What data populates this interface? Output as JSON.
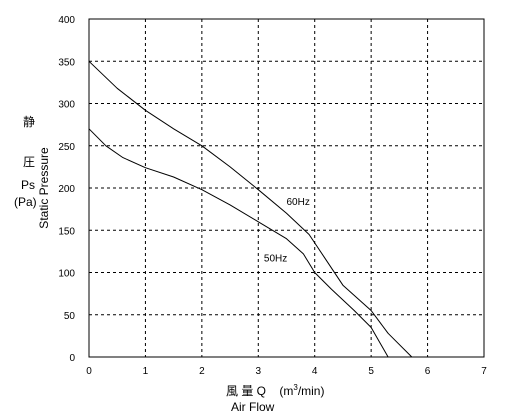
{
  "chart_data": {
    "type": "line",
    "x_ticks": [
      "0",
      "1",
      "2",
      "3",
      "4",
      "5",
      "6",
      "7"
    ],
    "y_ticks": [
      "0",
      "50",
      "100",
      "150",
      "200",
      "250",
      "300",
      "350",
      "400"
    ],
    "xlim": [
      0,
      7
    ],
    "ylim": [
      0,
      400
    ],
    "grid": true,
    "xlabel_jp": "風 量 Q",
    "xlabel_unit_pre": "(m",
    "xlabel_unit_sup": "3",
    "xlabel_unit_post": "/min)",
    "xlabel_en": "Air Flow",
    "ylabel_jp_1": "静",
    "ylabel_jp_2": "圧",
    "ylabel_sym": "Ps",
    "ylabel_unit": "(Pa)",
    "ylabel_en": "Static Pressure",
    "series": [
      {
        "name": "60Hz",
        "label_at": [
          3.5,
          180
        ],
        "points": [
          [
            0,
            350
          ],
          [
            0.5,
            318
          ],
          [
            1,
            292
          ],
          [
            1.5,
            270
          ],
          [
            2,
            250
          ],
          [
            2.5,
            225
          ],
          [
            3,
            198
          ],
          [
            3.5,
            170
          ],
          [
            3.9,
            145
          ],
          [
            4.2,
            115
          ],
          [
            4.5,
            85
          ],
          [
            5,
            55
          ],
          [
            5.3,
            28
          ],
          [
            5.72,
            0
          ]
        ]
      },
      {
        "name": "50Hz",
        "label_at": [
          3.1,
          113
        ],
        "points": [
          [
            0,
            270
          ],
          [
            0.3,
            250
          ],
          [
            0.6,
            236
          ],
          [
            1,
            224
          ],
          [
            1.5,
            213
          ],
          [
            2,
            198
          ],
          [
            2.5,
            180
          ],
          [
            3,
            160
          ],
          [
            3.5,
            140
          ],
          [
            3.8,
            122
          ],
          [
            4,
            100
          ],
          [
            4.3,
            80
          ],
          [
            4.7,
            55
          ],
          [
            5,
            35
          ],
          [
            5.3,
            0
          ]
        ]
      }
    ]
  }
}
